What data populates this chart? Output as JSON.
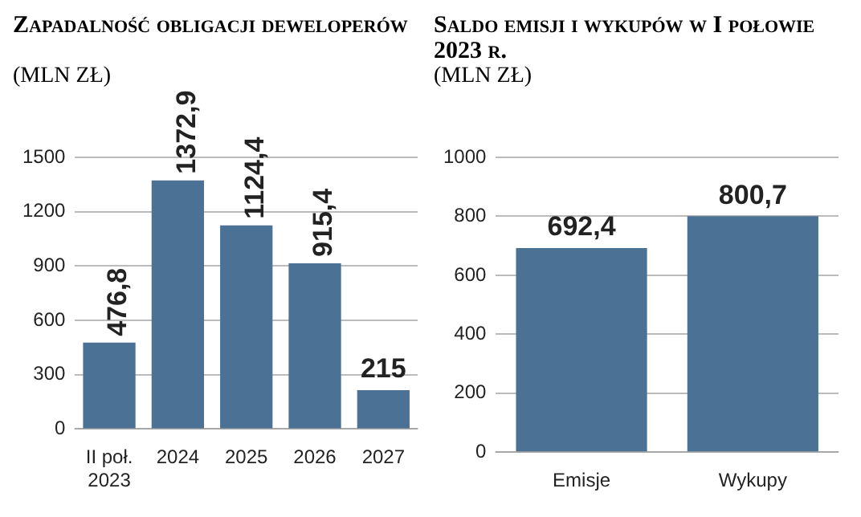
{
  "chart_data": [
    {
      "type": "bar",
      "title": "Zapadalność obligacji deweloperów",
      "ylabel": "(MLN ZŁ)",
      "categories": [
        "II poł.\n2023",
        "2024",
        "2025",
        "2026",
        "2027"
      ],
      "values": [
        476.8,
        1372.9,
        1124.4,
        915.4,
        215
      ],
      "value_labels": [
        "476,8",
        "1372,9",
        "1124,4",
        "915,4",
        "215"
      ],
      "color": "#4b7294",
      "ylim": [
        0,
        1500
      ],
      "yticks": [
        0,
        300,
        600,
        900,
        1200,
        1500
      ],
      "grid": "y"
    },
    {
      "type": "bar",
      "title": "Saldo emisji i wykupów w I połowie 2023 r.",
      "ylabel": "(MLN ZŁ)",
      "categories": [
        "Emisje",
        "Wykupy"
      ],
      "values": [
        692.4,
        800.7
      ],
      "value_labels": [
        "692,4",
        "800,7"
      ],
      "color": "#4b7294",
      "ylim": [
        0,
        1000
      ],
      "yticks": [
        0,
        200,
        400,
        600,
        800,
        1000
      ],
      "grid": "y"
    }
  ]
}
